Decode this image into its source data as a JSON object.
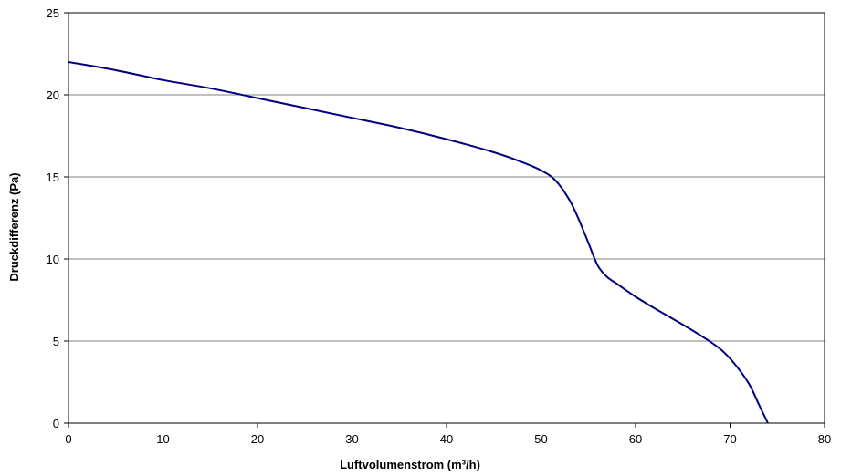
{
  "chart_data": {
    "type": "line",
    "title": "",
    "xlabel": "Luftvolumenstrom  (m³/h)",
    "ylabel": "Druckdifferenz  (Pa)",
    "xlim": [
      0,
      80
    ],
    "ylim": [
      0,
      25
    ],
    "x_ticks": [
      0,
      10,
      20,
      30,
      40,
      50,
      60,
      70,
      80
    ],
    "y_ticks": [
      0,
      5,
      10,
      15,
      20,
      25
    ],
    "grid": "horizontal",
    "legend": "none",
    "line_color": "#000080",
    "gridline_color": "#808080",
    "series": [
      {
        "x": [
          0,
          5,
          10,
          15,
          20,
          25,
          30,
          35,
          40,
          45,
          48,
          50,
          51.5,
          53,
          54,
          55,
          56,
          57,
          58,
          60,
          62,
          65,
          67,
          69,
          70.5,
          72,
          73,
          74
        ],
        "values": [
          22.0,
          21.5,
          20.9,
          20.4,
          19.8,
          19.2,
          18.6,
          18.0,
          17.3,
          16.5,
          15.9,
          15.4,
          14.8,
          13.6,
          12.4,
          11.0,
          9.6,
          8.9,
          8.5,
          7.7,
          7.0,
          6.0,
          5.3,
          4.5,
          3.6,
          2.4,
          1.2,
          0.0
        ]
      }
    ]
  }
}
